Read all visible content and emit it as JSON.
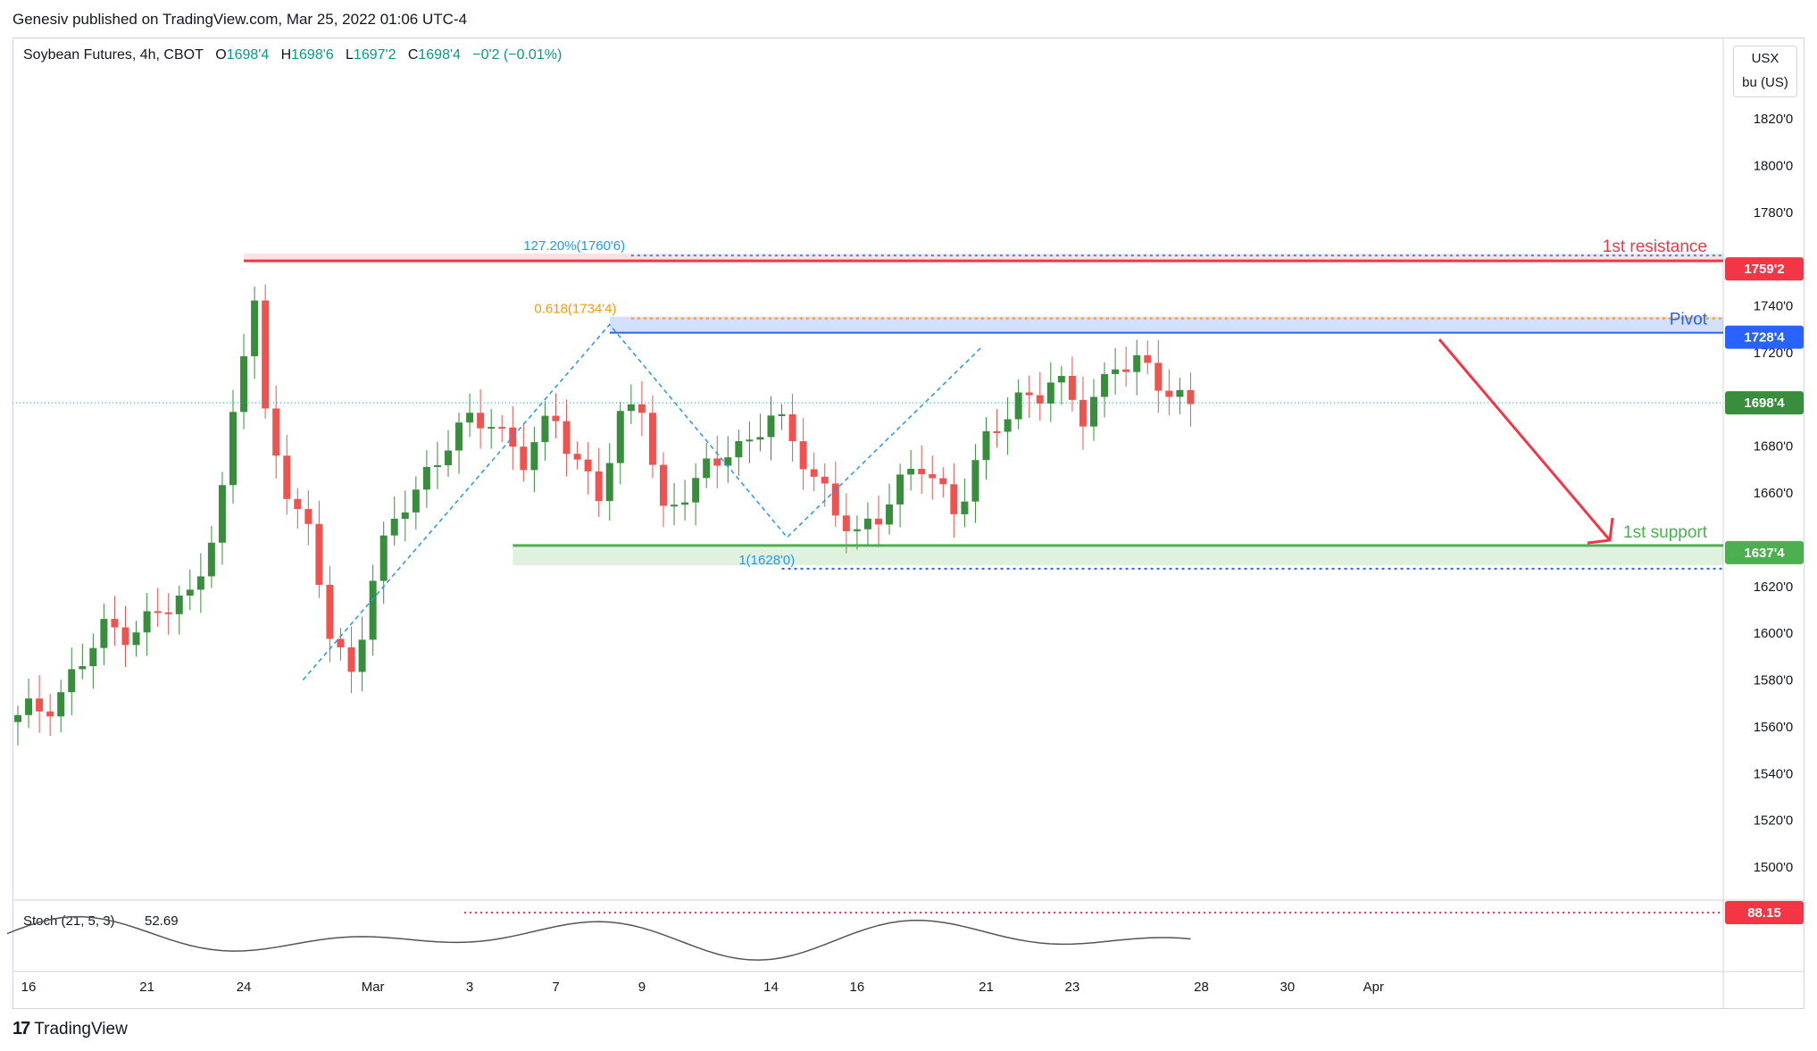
{
  "publisher": "Genesiv published on TradingView.com, Mar 25, 2022 01:06 UTC-4",
  "symbol_line": {
    "name": "Soybean Futures, 4h, CBOT",
    "o_label": "O",
    "o": "1698'4",
    "h_label": "H",
    "h": "1698'6",
    "l_label": "L",
    "l": "1697'2",
    "c_label": "C",
    "c": "1698'4",
    "change": "−0'2 (−0.01%)"
  },
  "units": {
    "currency": "USX",
    "unit": "bu (US)"
  },
  "footer": {
    "brand": "TradingView"
  },
  "colors": {
    "up": "#26a69a",
    "up_dark": "#388e3c",
    "down": "#ef5350",
    "resistance": "#f23645",
    "support": "#4caf50",
    "pivot": "#2962ff",
    "fib": "#2196f3",
    "fib_gold": "#ff9800"
  },
  "chart_data": {
    "type": "candlestick",
    "title": "Soybean Futures, 4h, CBOT",
    "ylim": [
      1480,
      1835
    ],
    "y_ticks": [
      "1820'0",
      "1800'0",
      "1780'0",
      "1740'0",
      "1720'0",
      "1680'0",
      "1660'0",
      "1620'0",
      "1600'0",
      "1580'0",
      "1560'0",
      "1540'0",
      "1520'0",
      "1500'0"
    ],
    "y_tick_values": [
      1820,
      1800,
      1780,
      1740,
      1720,
      1680,
      1660,
      1620,
      1600,
      1580,
      1560,
      1540,
      1520,
      1500
    ],
    "x_ticks": [
      "16",
      "21",
      "24",
      "Mar",
      "3",
      "7",
      "9",
      "14",
      "16",
      "21",
      "23",
      "28",
      "30",
      "Apr"
    ],
    "x_tick_index": [
      0,
      12,
      21,
      33,
      42,
      50,
      58,
      70,
      78,
      90,
      98,
      110,
      118,
      126
    ],
    "bars": [
      1.0,
      1.0,
      1.0,
      1.0,
      1.0
    ],
    "price_levels": [
      {
        "name": "1st resistance",
        "value": 1759.25,
        "tag": "1759'2"
      },
      {
        "name": "Pivot",
        "value": 1728.5,
        "tag": "1728'4"
      },
      {
        "name": "1st support",
        "value": 1637.5,
        "tag": "1637'4"
      },
      {
        "name": "last",
        "value": 1698.5,
        "tag": "1698'4"
      }
    ],
    "annotations": [
      "127.20%(1760'6)",
      "0.618(1734'4)",
      "1(1628'0)"
    ],
    "stoch": {
      "label": "Stoch (21, 5, 3)",
      "value": "52.69",
      "level": "88.15"
    }
  }
}
